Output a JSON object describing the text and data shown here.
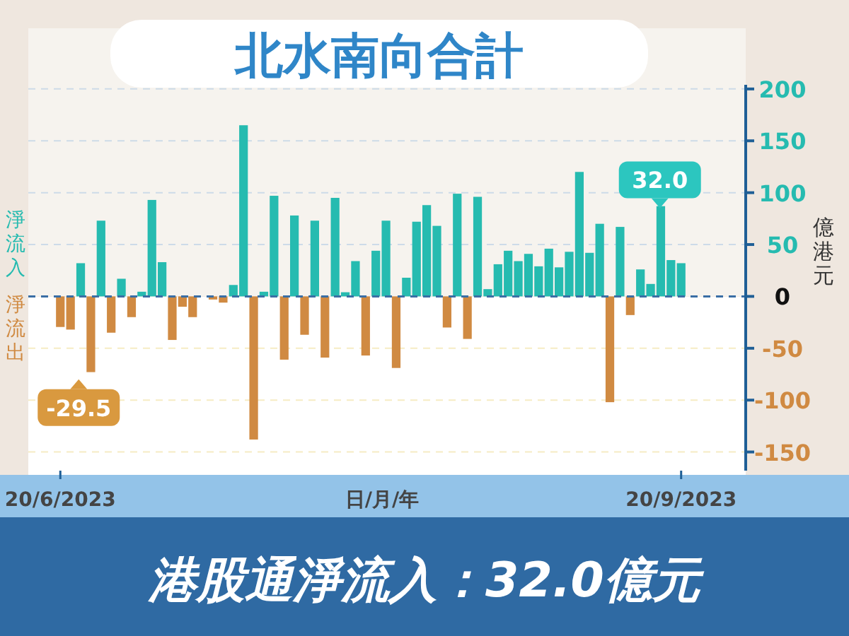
{
  "chart_data": {
    "type": "bar",
    "title": "北水南向合計",
    "xlabel": "日/月/年",
    "ylabel": "億港元",
    "categories": [
      "20/6/2023",
      null,
      null,
      null,
      null,
      null,
      null,
      null,
      null,
      null,
      null,
      null,
      null,
      null,
      null,
      null,
      null,
      null,
      null,
      null,
      null,
      null,
      null,
      null,
      null,
      null,
      null,
      null,
      null,
      null,
      null,
      null,
      null,
      null,
      null,
      null,
      null,
      null,
      null,
      null,
      null,
      null,
      null,
      null,
      null,
      null,
      null,
      null,
      null,
      null,
      null,
      null,
      null,
      null,
      null,
      null,
      null,
      null,
      null,
      null,
      null,
      "20/9/2023"
    ],
    "values": [
      -29.5,
      -32,
      32,
      -73,
      73,
      -35,
      17,
      -20,
      4.5,
      93,
      33,
      -42,
      -10,
      -20,
      null,
      -3,
      -6,
      11,
      165,
      -138,
      4.5,
      97,
      -61,
      78,
      -37,
      73,
      -59,
      95,
      4,
      34,
      -57,
      44,
      73,
      -69,
      18,
      72,
      88,
      68,
      -30,
      99,
      -41,
      96,
      7,
      31,
      44,
      34,
      41,
      29,
      46,
      28,
      43,
      120,
      42,
      70,
      -102,
      67,
      -18,
      26,
      12,
      87,
      35,
      32.0
    ],
    "colors": [
      "#d08a42",
      "#d08a42",
      "#26bbb0",
      "#d08a42",
      "#26bbb0",
      "#d08a42",
      "#26bbb0",
      "#d08a42",
      "#26bbb0",
      "#26bbb0",
      "#26bbb0",
      "#d08a42",
      "#d08a42",
      "#d08a42",
      "#d08a42",
      "#d08a42",
      "#d08a42",
      "#26bbb0",
      "#26bbb0",
      "#d08a42",
      "#26bbb0",
      "#26bbb0",
      "#d08a42",
      "#26bbb0",
      "#d08a42",
      "#26bbb0",
      "#d08a42",
      "#26bbb0",
      "#26bbb0",
      "#26bbb0",
      "#d08a42",
      "#26bbb0",
      "#26bbb0",
      "#d08a42",
      "#26bbb0",
      "#26bbb0",
      "#26bbb0",
      "#26bbb0",
      "#d08a42",
      "#26bbb0",
      "#d08a42",
      "#26bbb0",
      "#26bbb0",
      "#26bbb0",
      "#26bbb0",
      "#26bbb0",
      "#26bbb0",
      "#26bbb0",
      "#26bbb0",
      "#26bbb0",
      "#26bbb0",
      "#26bbb0",
      "#26bbb0",
      "#26bbb0",
      "#d08a42",
      "#26bbb0",
      "#d08a42",
      "#26bbb0",
      "#26bbb0",
      "#26bbb0",
      "#26bbb0",
      "#26bbb0"
    ],
    "ylim": [
      -168,
      204
    ],
    "yticks": [
      200,
      150,
      100,
      50,
      0,
      -50,
      -100,
      -150
    ],
    "grid": "y",
    "ref_lines": [
      {
        "axis": "y",
        "value": 0,
        "color": "#3a6ea5",
        "line_style": "dashed"
      }
    ],
    "annotations": [
      "-29.5",
      "32.0",
      "淨流入",
      "淨流出",
      "港股通淨流入：32.0億元"
    ]
  }
}
